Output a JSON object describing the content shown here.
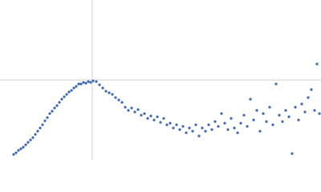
{
  "chart_data": {
    "type": "scatter",
    "color": "#3a66b4",
    "xlim": [
      0,
      400
    ],
    "ylim": [
      0,
      200
    ],
    "reference_x": 115,
    "reference_y": 100,
    "reference_color": "#d0d0d0",
    "x": [
      17,
      20,
      23,
      26,
      29,
      32,
      35,
      38,
      41,
      44,
      47,
      50,
      53,
      56,
      59,
      62,
      65,
      68,
      71,
      74,
      77,
      80,
      83,
      86,
      89,
      92,
      95,
      98,
      101,
      104,
      107,
      110,
      113,
      116,
      120,
      124,
      128,
      132,
      136,
      140,
      144,
      148,
      152,
      156,
      160,
      164,
      168,
      172,
      176,
      180,
      184,
      188,
      192,
      196,
      200,
      204,
      208,
      212,
      216,
      220,
      224,
      228,
      232,
      236,
      240,
      244,
      248,
      252,
      256,
      260,
      264,
      268,
      272,
      276,
      280,
      284,
      288,
      292,
      296,
      300,
      304,
      308,
      312,
      316,
      320,
      324,
      328,
      332,
      336,
      340,
      344,
      348,
      352,
      356,
      360,
      364,
      368,
      372,
      376,
      380,
      384,
      388,
      392,
      395,
      398
    ],
    "y": [
      7,
      9,
      12,
      14,
      16,
      19,
      22,
      25,
      28,
      32,
      36,
      40,
      44,
      49,
      53,
      58,
      61,
      65,
      68,
      72,
      76,
      79,
      82,
      85,
      87,
      90,
      92,
      95,
      95,
      97,
      96,
      98,
      97,
      99,
      98,
      94,
      90,
      86,
      84,
      82,
      78,
      75,
      72,
      66,
      62,
      65,
      60,
      63,
      56,
      58,
      52,
      55,
      50,
      54,
      47,
      52,
      44,
      46,
      40,
      44,
      38,
      42,
      34,
      40,
      36,
      44,
      30,
      40,
      36,
      44,
      38,
      48,
      42,
      58,
      46,
      38,
      52,
      40,
      34,
      46,
      56,
      42,
      76,
      50,
      62,
      36,
      58,
      48,
      66,
      44,
      95,
      56,
      48,
      62,
      54,
      8,
      66,
      50,
      70,
      60,
      78,
      88,
      62,
      120,
      58
    ]
  }
}
